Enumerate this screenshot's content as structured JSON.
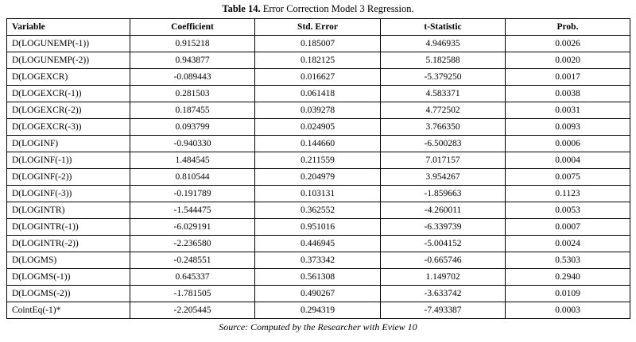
{
  "title": {
    "prefix": "Table 14.",
    "text": "Error Correction Model 3 Regression."
  },
  "table": {
    "headers": [
      "Variable",
      "Coefficient",
      "Std. Error",
      "t-Statistic",
      "Prob."
    ],
    "rows": [
      [
        "D(LOGUNEMP(-1))",
        "0.915218",
        "0.185007",
        "4.946935",
        "0.0026"
      ],
      [
        "D(LOGUNEMP(-2))",
        "0.943877",
        "0.182125",
        "5.182588",
        "0.0020"
      ],
      [
        "D(LOGEXCR)",
        "-0.089443",
        "0.016627",
        "-5.379250",
        "0.0017"
      ],
      [
        "D(LOGEXCR(-1))",
        "0.281503",
        "0.061418",
        "4.583371",
        "0.0038"
      ],
      [
        "D(LOGEXCR(-2))",
        "0.187455",
        "0.039278",
        "4.772502",
        "0.0031"
      ],
      [
        "D(LOGEXCR(-3))",
        "0.093799",
        "0.024905",
        "3.766350",
        "0.0093"
      ],
      [
        "D(LOGINF)",
        "-0.940330",
        "0.144660",
        "-6.500283",
        "0.0006"
      ],
      [
        "D(LOGINF(-1))",
        "1.484545",
        "0.211559",
        "7.017157",
        "0.0004"
      ],
      [
        "D(LOGINF(-2))",
        "0.810544",
        "0.204979",
        "3.954267",
        "0.0075"
      ],
      [
        "D(LOGINF(-3))",
        "-0.191789",
        "0.103131",
        "-1.859663",
        "0.1123"
      ],
      [
        "D(LOGINTR)",
        "-1.544475",
        "0.362552",
        "-4.260011",
        "0.0053"
      ],
      [
        "D(LOGINTR(-1))",
        "-6.029191",
        "0.951016",
        "-6.339739",
        "0.0007"
      ],
      [
        "D(LOGINTR(-2))",
        "-2.236580",
        "0.446945",
        "-5.004152",
        "0.0024"
      ],
      [
        "D(LOGMS)",
        "-0.248551",
        "0.373342",
        "-0.665746",
        "0.5303"
      ],
      [
        "D(LOGMS(-1))",
        "0.645337",
        "0.561308",
        "1.149702",
        "0.2940"
      ],
      [
        "D(LOGMS(-2))",
        "-1.781505",
        "0.490267",
        "-3.633742",
        "0.0109"
      ],
      [
        "CointEq(-1)*",
        "-2.205445",
        "0.294319",
        "-7.493387",
        "0.0003"
      ]
    ]
  },
  "footer": {
    "source": "Source: Computed by the Researcher with Eview 10"
  }
}
